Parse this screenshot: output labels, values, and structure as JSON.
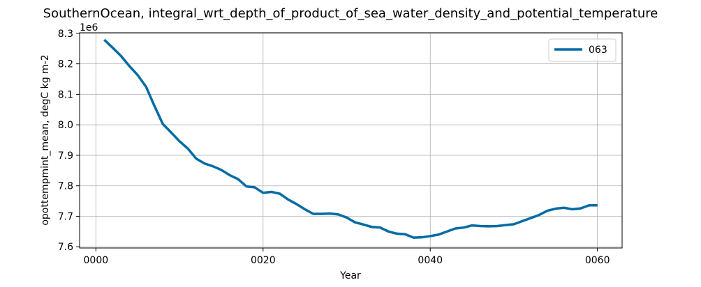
{
  "chart_data": {
    "type": "line",
    "title": "SouthernOcean, integral_wrt_depth_of_product_of_sea_water_density_and_potential_temperature",
    "xlabel": "Year",
    "ylabel": "opottempmint_mean, degC kg m-2",
    "offset_label": "1e6",
    "xlim": [
      -1.95,
      62.95
    ],
    "ylim": [
      7.596,
      8.302
    ],
    "y_scale": 1000000,
    "x_ticks": [
      0,
      20,
      40,
      60
    ],
    "x_tick_labels": [
      "0000",
      "0020",
      "0040",
      "0060"
    ],
    "y_ticks": [
      7.6,
      7.7,
      7.8,
      7.9,
      8.0,
      8.1,
      8.2,
      8.3
    ],
    "y_tick_labels": [
      "7.6",
      "7.7",
      "7.8",
      "7.9",
      "8.0",
      "8.1",
      "8.2",
      "8.3"
    ],
    "grid": true,
    "legend_position": "top-right",
    "series": [
      {
        "name": "063",
        "color": "#006ba4",
        "x": [
          1,
          2,
          3,
          4,
          5,
          6,
          7,
          8,
          9,
          10,
          11,
          12,
          13,
          14,
          15,
          16,
          17,
          18,
          19,
          20,
          21,
          22,
          23,
          24,
          25,
          26,
          27,
          28,
          29,
          30,
          31,
          32,
          33,
          34,
          35,
          36,
          37,
          38,
          39,
          40,
          41,
          42,
          43,
          44,
          45,
          46,
          47,
          48,
          49,
          50,
          51,
          52,
          53,
          54,
          55,
          56,
          57,
          58,
          59,
          60
        ],
        "y": [
          8.279,
          8.253,
          8.226,
          8.193,
          8.163,
          8.125,
          8.062,
          8.003,
          7.975,
          7.946,
          7.922,
          7.889,
          7.873,
          7.864,
          7.852,
          7.835,
          7.822,
          7.798,
          7.795,
          7.777,
          7.78,
          7.774,
          7.755,
          7.74,
          7.723,
          7.708,
          7.708,
          7.709,
          7.706,
          7.696,
          7.68,
          7.673,
          7.665,
          7.663,
          7.65,
          7.643,
          7.641,
          7.63,
          7.631,
          7.635,
          7.64,
          7.65,
          7.66,
          7.663,
          7.67,
          7.668,
          7.667,
          7.668,
          7.671,
          7.674,
          7.684,
          7.694,
          7.704,
          7.718,
          7.725,
          7.728,
          7.723,
          7.726,
          7.736,
          7.736
        ]
      }
    ]
  }
}
